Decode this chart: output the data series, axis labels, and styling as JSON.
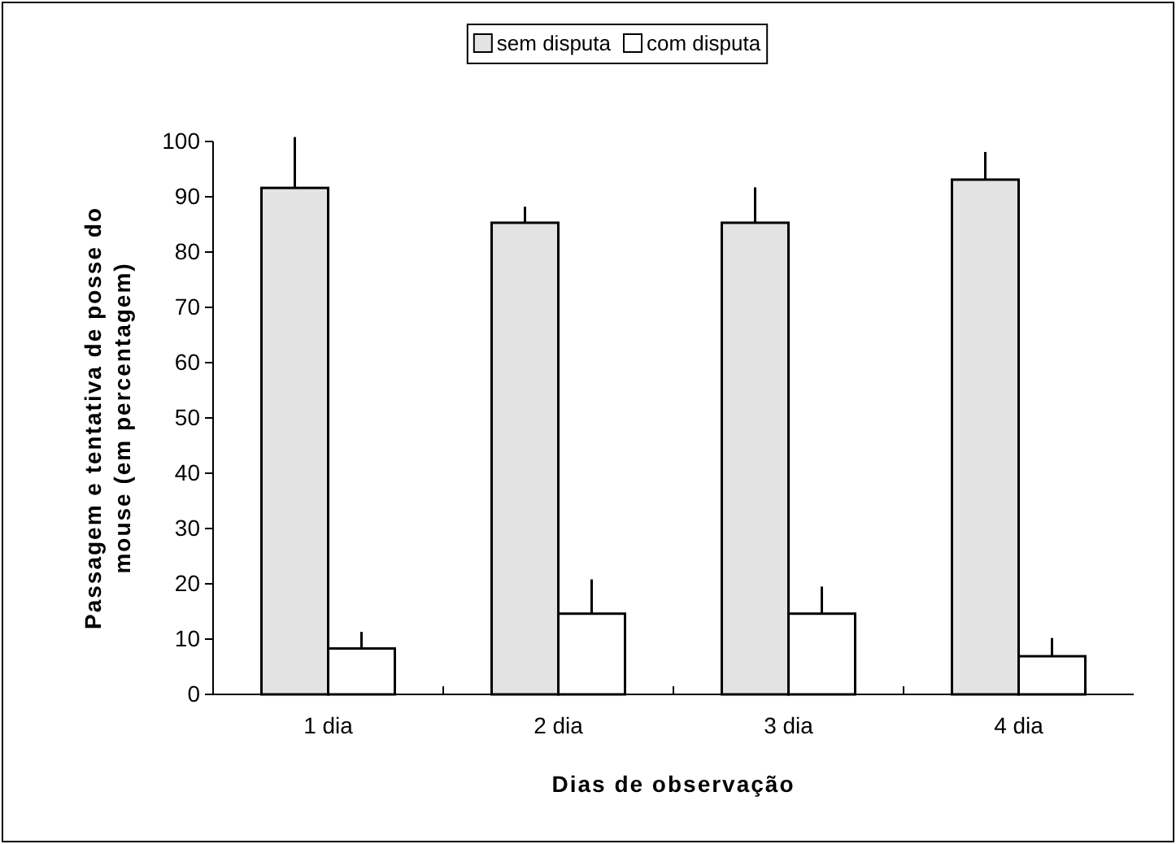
{
  "chart_data": {
    "type": "bar",
    "xlabel": "Dias de observação",
    "ylabel": "Passagem e tentativa de posse do mouse (em percentagem)",
    "categories": [
      "1 dia",
      "2 dia",
      "3 dia",
      "4 dia"
    ],
    "series": [
      {
        "name": "sem disputa",
        "color": "#e3e3e3",
        "values": [
          91.6,
          85.3,
          85.3,
          93.1
        ],
        "errors": [
          [
            91.6,
            100.8
          ],
          [
            85.3,
            88.2
          ],
          [
            85.3,
            91.7
          ],
          [
            93.1,
            98.1
          ]
        ]
      },
      {
        "name": "com disputa",
        "color": "#ffffff",
        "values": [
          8.3,
          14.6,
          14.6,
          6.9
        ],
        "errors": [
          [
            8.3,
            11.3
          ],
          [
            14.6,
            20.8
          ],
          [
            14.6,
            19.5
          ],
          [
            6.9,
            10.2
          ]
        ]
      }
    ],
    "ylim": [
      0,
      100
    ],
    "yticks": [
      0,
      10,
      20,
      30,
      40,
      50,
      60,
      70,
      80,
      90,
      100
    ],
    "grid": false,
    "legend": "top"
  }
}
